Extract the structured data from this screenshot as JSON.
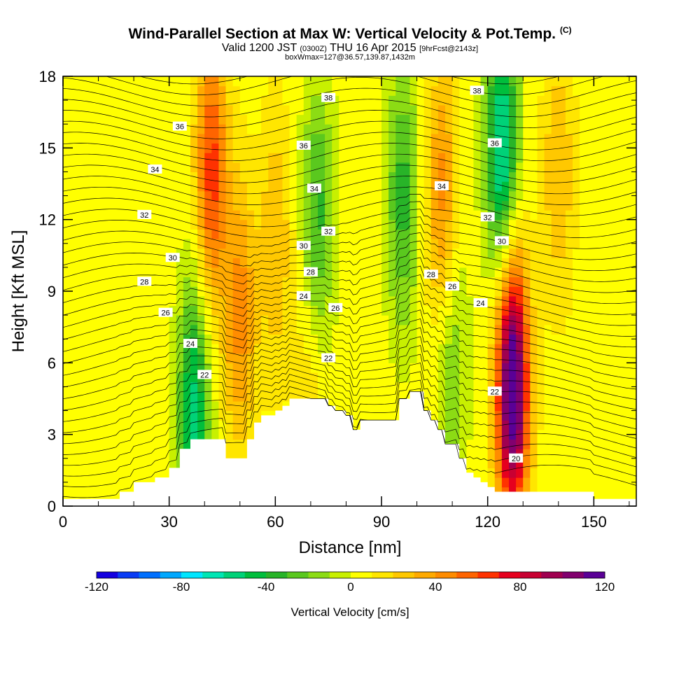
{
  "header": {
    "title": "Wind-Parallel Section at Max W: Vertical Velocity & Pot.Temp.",
    "copyright": "(C)",
    "valid_prefix": "Valid 1200 JST",
    "valid_utc": "(0300Z)",
    "valid_date": "THU 16 Apr 2015",
    "forecast": "[9hrFcst@2143z]",
    "box_info": "boxWmax=127@36.57,139.87,1432m"
  },
  "colors": {
    "scale": [
      "#1400e0",
      "#0a3cf5",
      "#0070ff",
      "#00a8ff",
      "#00e6ff",
      "#00e6b4",
      "#00d278",
      "#00be3c",
      "#28b428",
      "#5ac81e",
      "#8cdc14",
      "#c8f000",
      "#ffff00",
      "#ffe600",
      "#ffc800",
      "#ffaa00",
      "#ff8c00",
      "#ff6400",
      "#ff3200",
      "#e6001e",
      "#c80032",
      "#a00050",
      "#82006e",
      "#5a0096"
    ],
    "terrain": "#ffffff",
    "contour": "#000000"
  },
  "chart_data": {
    "type": "heatmap",
    "xlabel": "Distance [nm]",
    "ylabel": "Height [Kft MSL]",
    "xlim": [
      0,
      162
    ],
    "ylim": [
      0,
      18
    ],
    "x_ticks": [
      0,
      30,
      60,
      90,
      120,
      150
    ],
    "y_ticks": [
      0,
      3,
      6,
      9,
      12,
      15,
      18
    ],
    "colorbar": {
      "title": "Vertical Velocity [cm/s]",
      "range": [
        -120,
        120
      ],
      "tick_values": [
        -120,
        -80,
        -40,
        0,
        40,
        80,
        120
      ]
    },
    "terrain": {
      "x": [
        0,
        10,
        16,
        20,
        26,
        30,
        33,
        36,
        42,
        46,
        50,
        52,
        54,
        56,
        60,
        62,
        64,
        66,
        70,
        75,
        77,
        80,
        82,
        84,
        87,
        89,
        92,
        95,
        98,
        100,
        102,
        104,
        106,
        108,
        110,
        112,
        114,
        116,
        118,
        120,
        122,
        124,
        126,
        128,
        130,
        132,
        135,
        140,
        145,
        150,
        155,
        162
      ],
      "height": [
        0.3,
        0.3,
        0.6,
        1.0,
        1.2,
        1.6,
        2.4,
        2.8,
        2.8,
        2.0,
        2.0,
        2.8,
        3.5,
        3.8,
        4.0,
        4.2,
        4.5,
        4.5,
        4.5,
        4.2,
        4.0,
        3.8,
        3.2,
        3.6,
        3.6,
        3.6,
        3.6,
        4.5,
        4.8,
        4.8,
        4.0,
        3.6,
        3.2,
        2.6,
        2.6,
        2.0,
        1.4,
        1.2,
        1.0,
        0.8,
        0.6,
        0.6,
        0.6,
        0.6,
        0.6,
        0.6,
        0.6,
        0.6,
        0.6,
        0.3,
        0.3,
        0.3
      ]
    },
    "vertical_velocity_features": [
      {
        "x": 42,
        "y": 14,
        "value": 60
      },
      {
        "x": 50,
        "y": 8,
        "value": 40
      },
      {
        "x": 37,
        "y": 4,
        "value": -60
      },
      {
        "x": 72,
        "y": 12,
        "value": -40
      },
      {
        "x": 60,
        "y": 11,
        "value": 25
      },
      {
        "x": 96,
        "y": 13,
        "value": -40
      },
      {
        "x": 107,
        "y": 13,
        "value": 40
      },
      {
        "x": 124,
        "y": 15,
        "value": -70
      },
      {
        "x": 127,
        "y": 5,
        "value": 127
      },
      {
        "x": 140,
        "y": 14,
        "value": 25
      },
      {
        "x": 70,
        "y": 5.5,
        "value": 15
      },
      {
        "x": 110,
        "y": 6,
        "value": -25
      }
    ],
    "isentropes": [
      {
        "theta": 20,
        "label_x": 128,
        "label_y": 2.0
      },
      {
        "theta": 22,
        "label_x": 40,
        "label_y": 5.5
      },
      {
        "theta": 22,
        "label_x": 75,
        "label_y": 6.2
      },
      {
        "theta": 22,
        "label_x": 122,
        "label_y": 4.8
      },
      {
        "theta": 24,
        "label_x": 36,
        "label_y": 6.8
      },
      {
        "theta": 24,
        "label_x": 68,
        "label_y": 8.8
      },
      {
        "theta": 24,
        "label_x": 118,
        "label_y": 8.5
      },
      {
        "theta": 26,
        "label_x": 29,
        "label_y": 8.1
      },
      {
        "theta": 26,
        "label_x": 77,
        "label_y": 8.3
      },
      {
        "theta": 26,
        "label_x": 110,
        "label_y": 9.2
      },
      {
        "theta": 28,
        "label_x": 23,
        "label_y": 9.4
      },
      {
        "theta": 28,
        "label_x": 70,
        "label_y": 9.8
      },
      {
        "theta": 28,
        "label_x": 104,
        "label_y": 9.7
      },
      {
        "theta": 30,
        "label_x": 31,
        "label_y": 10.4
      },
      {
        "theta": 30,
        "label_x": 68,
        "label_y": 10.9
      },
      {
        "theta": 30,
        "label_x": 124,
        "label_y": 11.1
      },
      {
        "theta": 32,
        "label_x": 23,
        "label_y": 12.2
      },
      {
        "theta": 32,
        "label_x": 75,
        "label_y": 11.5
      },
      {
        "theta": 32,
        "label_x": 120,
        "label_y": 12.1
      },
      {
        "theta": 34,
        "label_x": 26,
        "label_y": 14.1
      },
      {
        "theta": 34,
        "label_x": 71,
        "label_y": 13.3
      },
      {
        "theta": 34,
        "label_x": 107,
        "label_y": 13.4
      },
      {
        "theta": 36,
        "label_x": 33,
        "label_y": 15.9
      },
      {
        "theta": 36,
        "label_x": 68,
        "label_y": 15.1
      },
      {
        "theta": 36,
        "label_x": 122,
        "label_y": 15.2
      },
      {
        "theta": 38,
        "label_x": 75,
        "label_y": 17.1
      },
      {
        "theta": 38,
        "label_x": 117,
        "label_y": 17.4
      }
    ]
  }
}
